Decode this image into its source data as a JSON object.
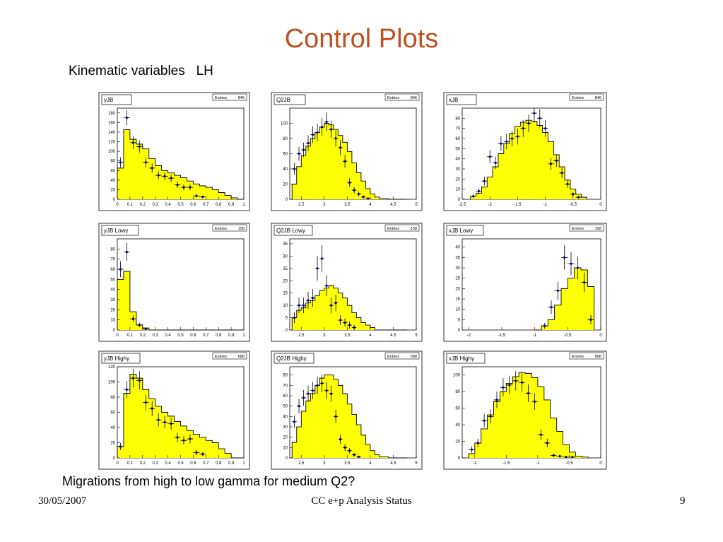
{
  "slide": {
    "title": "Control Plots",
    "subtitle": "Kinematic variables   LH",
    "caption": "Migrations from high to low gamma for medium Q2?",
    "footer_date": "30/05/2007",
    "footer_center": "CC e+p Analysis Status",
    "footer_page": "9"
  },
  "colors": {
    "title": "#c0501f",
    "fill": "#ffff00",
    "line": "#000000",
    "points": "#00008b"
  },
  "chart_data": [
    {
      "type": "histogram",
      "title": "yJB",
      "stats_label": "Entries",
      "stats_value": "846",
      "xlim": [
        0,
        1
      ],
      "ylim": [
        0,
        190
      ],
      "xticks": [
        "0",
        "0.1",
        "0.2",
        "0.3",
        "0.4",
        "0.5",
        "0.6",
        "0.7",
        "0.8",
        "0.9",
        "1"
      ],
      "yticks": [
        "0",
        "20",
        "40",
        "60",
        "80",
        "100",
        "120",
        "140",
        "160",
        "180"
      ],
      "bin_edges": [
        0,
        0.05,
        0.1,
        0.15,
        0.2,
        0.25,
        0.3,
        0.35,
        0.4,
        0.45,
        0.5,
        0.55,
        0.6,
        0.65,
        0.7,
        0.75,
        0.8,
        0.85,
        0.9,
        0.95,
        1
      ],
      "series": [
        {
          "type": "hist",
          "values": [
            65,
            145,
            125,
            115,
            105,
            85,
            70,
            60,
            55,
            50,
            45,
            38,
            32,
            28,
            25,
            20,
            14,
            8,
            3,
            0
          ]
        },
        {
          "type": "points",
          "values": [
            77,
            170,
            118,
            110,
            77,
            65,
            50,
            48,
            44,
            30,
            25,
            25,
            7,
            5,
            0,
            0,
            0,
            0,
            0,
            0
          ]
        }
      ]
    },
    {
      "type": "histogram",
      "title": "Q2JB",
      "stats_label": "Entries",
      "stats_value": "846",
      "xlim": [
        2.25,
        5
      ],
      "ylim": [
        0,
        120
      ],
      "xticks": [
        "2.5",
        "3",
        "3.5",
        "4",
        "4.5",
        "5"
      ],
      "yticks": [
        "0",
        "20",
        "40",
        "60",
        "80",
        "100"
      ],
      "bin_edges": [
        2.3,
        2.4,
        2.5,
        2.6,
        2.7,
        2.8,
        2.9,
        3.0,
        3.1,
        3.2,
        3.3,
        3.4,
        3.5,
        3.6,
        3.7,
        3.8,
        3.9,
        4.0,
        4.1,
        4.2,
        4.3,
        4.4,
        4.5,
        4.6,
        4.7,
        4.8
      ],
      "series": [
        {
          "type": "hist",
          "values": [
            20,
            43,
            58,
            70,
            80,
            88,
            95,
            100,
            98,
            92,
            84,
            75,
            63,
            48,
            35,
            24,
            14,
            7,
            3,
            1,
            1,
            0,
            0,
            0,
            0
          ]
        },
        {
          "type": "points",
          "values": [
            40,
            60,
            65,
            74,
            85,
            88,
            95,
            102,
            92,
            80,
            68,
            50,
            22,
            12,
            7,
            3,
            1,
            0,
            0,
            0,
            0,
            0,
            0,
            0,
            0
          ]
        }
      ]
    },
    {
      "type": "histogram",
      "title": "xJB",
      "stats_label": "Entries",
      "stats_value": "846",
      "xlim": [
        -2.5,
        0
      ],
      "ylim": [
        0,
        90
      ],
      "xticks": [
        "-2.5",
        "-2",
        "-1.5",
        "-1",
        "-0.5",
        "0"
      ],
      "yticks": [
        "0",
        "10",
        "20",
        "30",
        "40",
        "50",
        "60",
        "70",
        "80"
      ],
      "bin_edges": [
        -2.35,
        -2.25,
        -2.15,
        -2.05,
        -1.95,
        -1.85,
        -1.75,
        -1.65,
        -1.55,
        -1.45,
        -1.35,
        -1.25,
        -1.15,
        -1.05,
        -0.95,
        -0.85,
        -0.75,
        -0.65,
        -0.55,
        -0.45,
        -0.35,
        -0.25
      ],
      "series": [
        {
          "type": "hist",
          "values": [
            3,
            6,
            12,
            22,
            32,
            45,
            55,
            65,
            72,
            76,
            78,
            77,
            73,
            66,
            57,
            44,
            32,
            19,
            10,
            5,
            2
          ]
        },
        {
          "type": "points",
          "values": [
            3,
            8,
            18,
            42,
            36,
            55,
            57,
            60,
            62,
            70,
            75,
            85,
            80,
            70,
            35,
            38,
            26,
            15,
            5,
            2,
            0
          ]
        }
      ]
    },
    {
      "type": "histogram",
      "title": "yJB Lowγ",
      "stats_label": "Entries",
      "stats_value": "158",
      "xlim": [
        0,
        1
      ],
      "ylim": [
        0,
        90
      ],
      "xticks": [
        "0",
        "0.1",
        "0.2",
        "0.3",
        "0.4",
        "0.5",
        "0.6",
        "0.7",
        "0.8",
        "0.9",
        "1"
      ],
      "yticks": [
        "0",
        "10",
        "20",
        "30",
        "40",
        "50",
        "60",
        "70",
        "80"
      ],
      "bin_edges": [
        0,
        0.05,
        0.1,
        0.15,
        0.2,
        0.25,
        0.3,
        0.35,
        0.4,
        0.45,
        0.5,
        0.55,
        0.6,
        0.65,
        0.7,
        0.75,
        0.8,
        0.85,
        0.9,
        0.95,
        1
      ],
      "series": [
        {
          "type": "hist",
          "values": [
            50,
            58,
            18,
            5,
            2,
            0,
            0,
            0,
            0,
            0,
            0,
            0,
            0,
            0,
            0,
            0,
            0,
            0,
            0,
            0
          ]
        },
        {
          "type": "points",
          "values": [
            60,
            77,
            11,
            5,
            1,
            0,
            0,
            0,
            0,
            0,
            0,
            0,
            0,
            0,
            0,
            0,
            0,
            0,
            0,
            0
          ]
        }
      ]
    },
    {
      "type": "histogram",
      "title": "Q2JB Lowγ",
      "stats_label": "Entries",
      "stats_value": "158",
      "xlim": [
        2.25,
        5
      ],
      "ylim": [
        0,
        37
      ],
      "xticks": [
        "2.5",
        "3",
        "3.5",
        "4",
        "4.5",
        "5"
      ],
      "yticks": [
        "0",
        "5",
        "10",
        "15",
        "20",
        "25",
        "30",
        "35"
      ],
      "bin_edges": [
        2.3,
        2.4,
        2.5,
        2.6,
        2.7,
        2.8,
        2.9,
        3.0,
        3.1,
        3.2,
        3.3,
        3.4,
        3.5,
        3.6,
        3.7,
        3.8,
        3.9,
        4.0,
        4.1,
        4.2,
        4.3,
        4.4,
        4.5,
        4.6,
        4.7,
        4.8
      ],
      "series": [
        {
          "type": "hist",
          "values": [
            5,
            8,
            9,
            11,
            12,
            14,
            16,
            17,
            18,
            17,
            15,
            13,
            10,
            7,
            5,
            3,
            2,
            1,
            0,
            0,
            0,
            0,
            0,
            0,
            0
          ]
        },
        {
          "type": "points",
          "values": [
            5,
            10,
            10,
            12,
            13,
            25,
            29,
            18,
            10,
            11,
            4,
            3,
            2,
            1,
            0,
            0,
            0,
            0,
            0,
            0,
            0,
            0,
            0,
            0,
            0
          ]
        }
      ]
    },
    {
      "type": "histogram",
      "title": "xJB Lowγ",
      "stats_label": "Entries",
      "stats_value": "158",
      "xlim": [
        -2.1,
        0
      ],
      "ylim": [
        0,
        44
      ],
      "xticks": [
        "-2",
        "-1.5",
        "-1",
        "-0.5",
        "0"
      ],
      "yticks": [
        "0",
        "5",
        "10",
        "15",
        "20",
        "25",
        "30",
        "35",
        "40"
      ],
      "bin_edges": [
        -1.0,
        -0.9,
        -0.8,
        -0.7,
        -0.6,
        -0.5,
        -0.4,
        -0.3,
        -0.2,
        -0.1
      ],
      "series": [
        {
          "type": "hist",
          "values": [
            0,
            2,
            5,
            12,
            20,
            25,
            30,
            29,
            21
          ]
        },
        {
          "type": "points",
          "values": [
            0,
            2,
            11,
            19,
            35,
            32,
            30,
            23,
            5
          ]
        }
      ]
    },
    {
      "type": "histogram",
      "title": "yJB Highγ",
      "stats_label": "Entries",
      "stats_value": "688",
      "xlim": [
        0,
        1
      ],
      "ylim": [
        0,
        120
      ],
      "xticks": [
        "0",
        "0.1",
        "0.2",
        "0.3",
        "0.4",
        "0.5",
        "0.6",
        "0.7",
        "0.8",
        "0.9",
        "1"
      ],
      "yticks": [
        "0",
        "20",
        "40",
        "60",
        "80",
        "100",
        "120"
      ],
      "bin_edges": [
        0,
        0.05,
        0.1,
        0.15,
        0.2,
        0.25,
        0.3,
        0.35,
        0.4,
        0.45,
        0.5,
        0.55,
        0.6,
        0.65,
        0.7,
        0.75,
        0.8,
        0.85,
        0.9,
        0.95,
        1
      ],
      "series": [
        {
          "type": "hist",
          "values": [
            15,
            85,
            110,
            105,
            90,
            78,
            68,
            60,
            55,
            48,
            42,
            36,
            31,
            27,
            23,
            20,
            12,
            6,
            0,
            0
          ]
        },
        {
          "type": "points",
          "values": [
            15,
            90,
            105,
            102,
            73,
            65,
            50,
            47,
            45,
            27,
            23,
            25,
            7,
            5,
            0,
            0,
            0,
            0,
            0,
            0
          ]
        }
      ]
    },
    {
      "type": "histogram",
      "title": "Q2JB Highγ",
      "stats_label": "Entries",
      "stats_value": "688",
      "xlim": [
        2.25,
        5
      ],
      "ylim": [
        0,
        88
      ],
      "xticks": [
        "2.5",
        "3",
        "3.5",
        "4",
        "4.5",
        "5"
      ],
      "yticks": [
        "0",
        "10",
        "20",
        "30",
        "40",
        "50",
        "60",
        "70",
        "80"
      ],
      "bin_edges": [
        2.3,
        2.4,
        2.5,
        2.6,
        2.7,
        2.8,
        2.9,
        3.0,
        3.1,
        3.2,
        3.3,
        3.4,
        3.5,
        3.6,
        3.7,
        3.8,
        3.9,
        4.0,
        4.1,
        4.2,
        4.3,
        4.4,
        4.5,
        4.6,
        4.7,
        4.8
      ],
      "series": [
        {
          "type": "hist",
          "values": [
            15,
            30,
            45,
            55,
            62,
            70,
            77,
            80,
            80,
            76,
            70,
            62,
            52,
            42,
            32,
            22,
            13,
            7,
            3,
            1,
            1,
            0,
            0,
            0,
            0
          ]
        },
        {
          "type": "points",
          "values": [
            35,
            50,
            58,
            62,
            65,
            70,
            72,
            65,
            62,
            40,
            18,
            10,
            7,
            3,
            1,
            0,
            0,
            0,
            0,
            0,
            0,
            0,
            0,
            0,
            0
          ]
        }
      ]
    },
    {
      "type": "histogram",
      "title": "xJB Highγ",
      "stats_label": "Entries",
      "stats_value": "688",
      "xlim": [
        -2.2,
        0
      ],
      "ylim": [
        0,
        110
      ],
      "xticks": [
        "-2",
        "-1.5",
        "-1",
        "-0.5",
        "0"
      ],
      "yticks": [
        "0",
        "20",
        "40",
        "60",
        "80",
        "100"
      ],
      "bin_edges": [
        -2.1,
        -2.0,
        -1.9,
        -1.8,
        -1.7,
        -1.6,
        -1.5,
        -1.4,
        -1.3,
        -1.2,
        -1.1,
        -1.0,
        -0.9,
        -0.8,
        -0.7,
        -0.6,
        -0.5,
        -0.4,
        -0.3,
        -0.2
      ],
      "series": [
        {
          "type": "hist",
          "values": [
            5,
            18,
            35,
            52,
            68,
            80,
            90,
            98,
            103,
            102,
            97,
            86,
            70,
            48,
            32,
            16,
            7,
            2,
            1
          ]
        },
        {
          "type": "points",
          "values": [
            10,
            18,
            45,
            50,
            70,
            85,
            88,
            93,
            91,
            78,
            68,
            28,
            18,
            3,
            2,
            1,
            1,
            0,
            0
          ]
        }
      ]
    }
  ]
}
